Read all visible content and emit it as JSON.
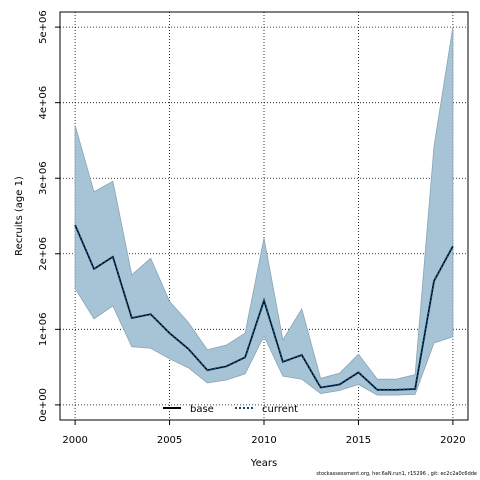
{
  "chart_data": {
    "type": "line",
    "xlabel": "Years",
    "ylabel": "Recruits (age 1)",
    "xlim": [
      1999.2,
      2020.8
    ],
    "ylim": [
      -200000,
      5200000
    ],
    "x_ticks": [
      2000,
      2005,
      2010,
      2015,
      2020
    ],
    "x_tick_labels": [
      "2000",
      "2005",
      "2010",
      "2015",
      "2020"
    ],
    "y_ticks": [
      0,
      1000000,
      2000000,
      3000000,
      4000000,
      5000000
    ],
    "y_tick_labels": [
      "0e+00",
      "1e+06",
      "2e+06",
      "3e+06",
      "4e+06",
      "5e+06"
    ],
    "grid": true,
    "legend_position": "bottom-center",
    "x": [
      2000,
      2001,
      2002,
      2003,
      2004,
      2005,
      2006,
      2007,
      2008,
      2009,
      2010,
      2011,
      2012,
      2013,
      2014,
      2015,
      2016,
      2017,
      2018,
      2019,
      2020
    ],
    "band": {
      "color": "#a6c4d6",
      "upper": [
        3700000,
        2820000,
        2960000,
        1720000,
        1940000,
        1370000,
        1090000,
        730000,
        790000,
        950000,
        2210000,
        860000,
        1270000,
        350000,
        420000,
        670000,
        340000,
        340000,
        400000,
        3420000,
        5000000
      ],
      "lower": [
        1540000,
        1140000,
        1310000,
        770000,
        750000,
        610000,
        490000,
        290000,
        330000,
        410000,
        910000,
        380000,
        340000,
        150000,
        190000,
        270000,
        130000,
        130000,
        140000,
        820000,
        900000
      ]
    },
    "series": [
      {
        "name": "base",
        "color": "#000000",
        "style": "solid",
        "values": [
          2380000,
          1800000,
          1960000,
          1150000,
          1200000,
          950000,
          740000,
          460000,
          510000,
          630000,
          1380000,
          570000,
          660000,
          230000,
          270000,
          430000,
          200000,
          200000,
          210000,
          1640000,
          2100000
        ]
      },
      {
        "name": "current",
        "color": "#0b4c7d",
        "style": "dotted",
        "values": [
          2380000,
          1800000,
          1960000,
          1150000,
          1200000,
          950000,
          740000,
          460000,
          510000,
          630000,
          1380000,
          570000,
          660000,
          230000,
          270000,
          430000,
          200000,
          200000,
          210000,
          1640000,
          2100000
        ]
      }
    ]
  },
  "footer_text": "stockassessment.org, her.6aN.run1, r15296 , git: ec2c2a0c6dde"
}
